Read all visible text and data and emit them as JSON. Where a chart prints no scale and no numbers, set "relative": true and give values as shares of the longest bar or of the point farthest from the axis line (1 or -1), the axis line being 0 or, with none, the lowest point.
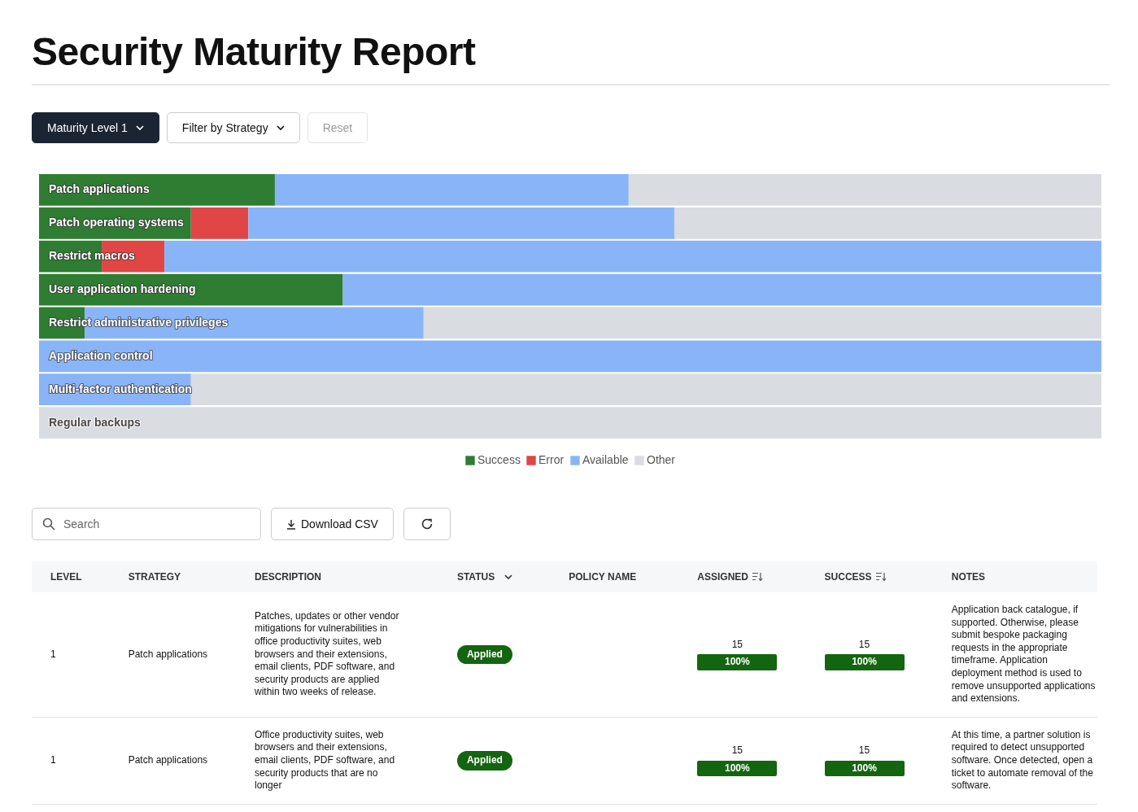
{
  "chart_data": [
    {
      "type": "bar",
      "title": "Security Maturity Report",
      "orientation": "horizontal",
      "stacked": true,
      "relative": true,
      "legend": "bottom",
      "annotations": [
        "Maturity Level 1",
        "Filter by Strategy",
        "Reset"
      ],
      "categories": [
        "Patch applications",
        "Patch operating systems",
        "Restrict macros",
        "User application hardening",
        "Restrict administrative privileges",
        "Application control",
        "Multi-factor authentication",
        "Regular backups"
      ],
      "series": [
        {
          "name": "Success",
          "color": "#2e7d32",
          "values": [
            0.222,
            0.143,
            0.059,
            0.286,
            0.043,
            0,
            0,
            0
          ]
        },
        {
          "name": "Error",
          "color": "#e04646",
          "values": [
            0,
            0.054,
            0.059,
            0,
            0,
            0,
            0,
            0
          ]
        },
        {
          "name": "Available",
          "color": "#8ab4f8",
          "values": [
            0.333,
            0.401,
            0.882,
            0.714,
            0.319,
            1,
            0.143,
            0
          ]
        },
        {
          "name": "Other",
          "color": "#d9dce1",
          "values": [
            0.445,
            0.402,
            0,
            0,
            0.638,
            0,
            0.857,
            1
          ]
        }
      ]
    },
    {
      "type": "other",
      "categories": [
        "LEVEL",
        "STRATEGY",
        "DESCRIPTION",
        "STATUS",
        "POLICY NAME",
        "ASSIGNED",
        "SUCCESS",
        "NOTES"
      ],
      "annotations": [
        "Search",
        "Download CSV",
        "1",
        "Patch applications",
        "Patches, updates or other vendor mitigations for vulnerabilities in office productivity suites, web browsers and their extensions, email clients, PDF software, and security products are applied within two weeks of release.",
        "Applied",
        "15",
        "100%",
        "15",
        "100%",
        "Application back catalogue, if supported. Otherwise, please submit bespoke packaging requests in the appropriate timeframe. Application deployment method is used to remove unsupported applications and extensions.",
        "1",
        "Patch applications",
        "Office productivity suites, web browsers and their extensions, email clients, PDF software, and security products that are no longer",
        "Applied",
        "15",
        "100%",
        "15",
        "100%",
        "At this time, a partner solution is required to detect unsupported software. Once detected, open a ticket to automate removal of the software."
      ]
    }
  ]
}
